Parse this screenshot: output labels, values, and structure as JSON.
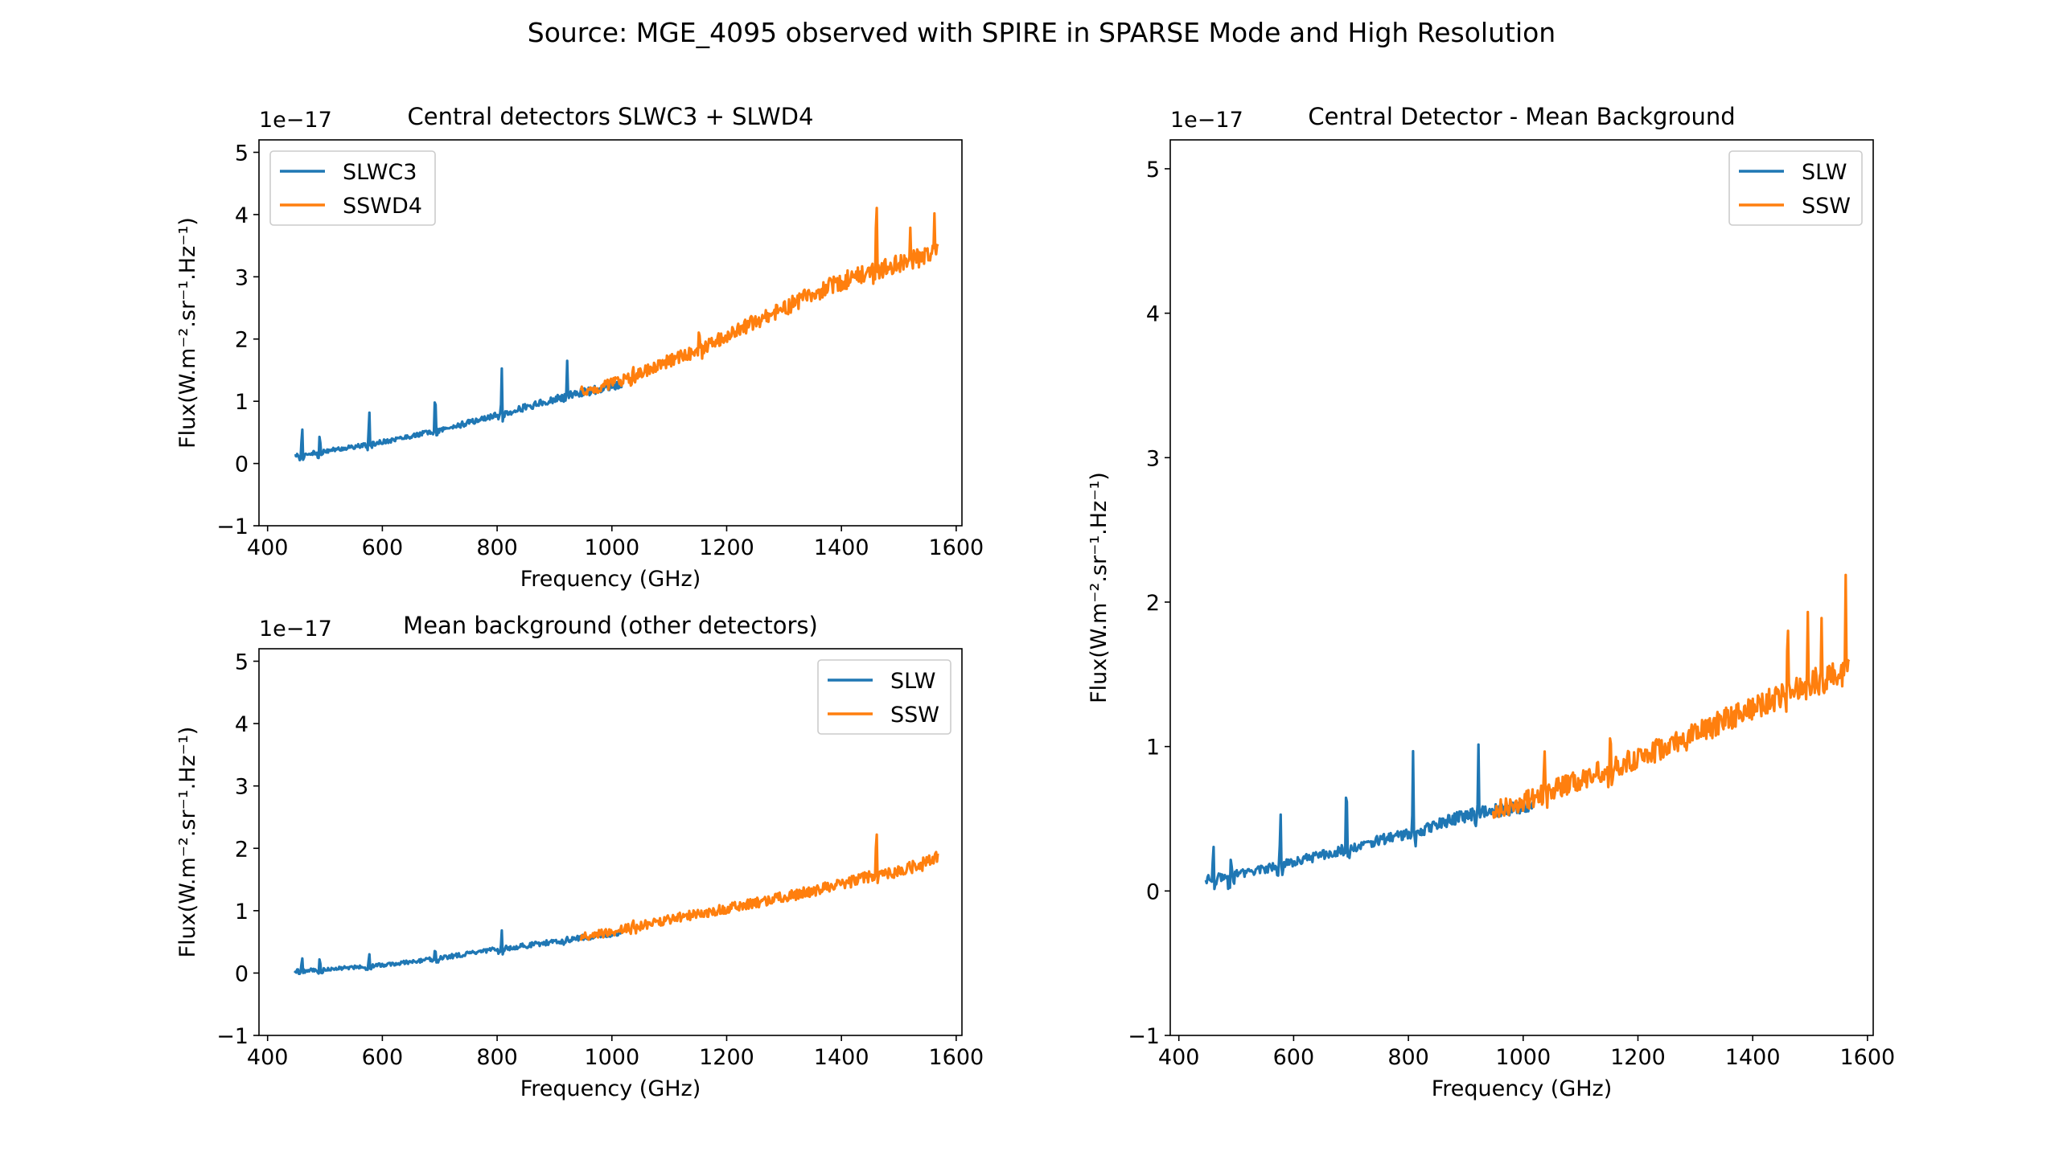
{
  "figure": {
    "suptitle": "Source: MGE_4095 observed with SPIRE in SPARSE Mode and High Resolution"
  },
  "colors": {
    "slw": "#1f77b4",
    "ssw": "#ff7f0e"
  },
  "chart_data": [
    {
      "type": "line",
      "title": "Central detectors SLWC3 + SLWD4",
      "xlabel": "Frequency (GHz)",
      "ylabel": "Flux(W.m⁻².sr⁻¹.Hz⁻¹)",
      "offset_text": "1e−17",
      "xlim": [
        385,
        1610
      ],
      "ylim": [
        -1.0,
        5.2
      ],
      "xticks": [
        400,
        600,
        800,
        1000,
        1200,
        1400,
        1600
      ],
      "yticks": [
        -1,
        0,
        1,
        2,
        3,
        4,
        5
      ],
      "legend_position": "upper-left",
      "series": [
        {
          "name": "SLWC3",
          "color": "#1f77b4",
          "x": [
            447,
            460,
            480,
            500,
            530,
            560,
            577,
            600,
            640,
            680,
            692,
            720,
            760,
            800,
            808,
            840,
            880,
            920,
            960,
            990,
            1018
          ],
          "y": [
            0.12,
            0.14,
            0.17,
            0.2,
            0.24,
            0.28,
            0.3,
            0.35,
            0.42,
            0.5,
            0.52,
            0.58,
            0.68,
            0.78,
            0.8,
            0.88,
            0.98,
            1.08,
            1.16,
            1.22,
            1.25
          ],
          "peaks": [
            {
              "x": 460,
              "y": 0.72
            },
            {
              "x": 491,
              "y": 0.55
            },
            {
              "x": 577,
              "y": 0.98
            },
            {
              "x": 692,
              "y": 1.35
            },
            {
              "x": 808,
              "y": 1.62
            },
            {
              "x": 922,
              "y": 1.68
            }
          ]
        },
        {
          "name": "SSWD4",
          "color": "#ff7f0e",
          "x": [
            946,
            1000,
            1050,
            1100,
            1150,
            1200,
            1250,
            1300,
            1350,
            1400,
            1450,
            1500,
            1540,
            1568
          ],
          "y": [
            1.15,
            1.28,
            1.45,
            1.65,
            1.82,
            2.05,
            2.28,
            2.5,
            2.72,
            2.92,
            3.08,
            3.22,
            3.32,
            3.45
          ],
          "peaks": [
            {
              "x": 1037,
              "y": 1.6
            },
            {
              "x": 1152,
              "y": 2.3
            },
            {
              "x": 1461,
              "y": 4.68
            },
            {
              "x": 1520,
              "y": 3.8
            },
            {
              "x": 1562,
              "y": 4.02
            }
          ]
        }
      ]
    },
    {
      "type": "line",
      "title": "Mean background (other detectors)",
      "xlabel": "Frequency (GHz)",
      "ylabel": "Flux(W.m⁻².sr⁻¹.Hz⁻¹)",
      "offset_text": "1e−17",
      "xlim": [
        385,
        1610
      ],
      "ylim": [
        -1.0,
        5.2
      ],
      "xticks": [
        400,
        600,
        800,
        1000,
        1200,
        1400,
        1600
      ],
      "yticks": [
        -1,
        0,
        1,
        2,
        3,
        4,
        5
      ],
      "legend_position": "upper-right",
      "series": [
        {
          "name": "SLW",
          "color": "#1f77b4",
          "x": [
            447,
            500,
            560,
            600,
            650,
            700,
            750,
            800,
            850,
            900,
            950,
            1000,
            1018
          ],
          "y": [
            0.03,
            0.06,
            0.1,
            0.13,
            0.18,
            0.24,
            0.31,
            0.38,
            0.44,
            0.5,
            0.57,
            0.63,
            0.66
          ],
          "peaks": [
            {
              "x": 460,
              "y": 0.32
            },
            {
              "x": 491,
              "y": 0.3
            },
            {
              "x": 577,
              "y": 0.36
            },
            {
              "x": 692,
              "y": 0.45
            },
            {
              "x": 808,
              "y": 0.72
            },
            {
              "x": 922,
              "y": 0.58
            }
          ]
        },
        {
          "name": "SSW",
          "color": "#ff7f0e",
          "x": [
            946,
            1000,
            1050,
            1100,
            1150,
            1200,
            1250,
            1300,
            1350,
            1400,
            1450,
            1500,
            1540,
            1568
          ],
          "y": [
            0.58,
            0.66,
            0.76,
            0.86,
            0.95,
            1.03,
            1.12,
            1.22,
            1.32,
            1.42,
            1.54,
            1.63,
            1.74,
            1.86
          ],
          "peaks": [
            {
              "x": 1037,
              "y": 0.88
            },
            {
              "x": 1461,
              "y": 2.6
            }
          ]
        }
      ]
    },
    {
      "type": "line",
      "title": "Central Detector - Mean Background",
      "xlabel": "Frequency (GHz)",
      "ylabel": "Flux(W.m⁻².sr⁻¹.Hz⁻¹)",
      "offset_text": "1e−17",
      "xlim": [
        385,
        1610
      ],
      "ylim": [
        -1.0,
        5.2
      ],
      "xticks": [
        400,
        600,
        800,
        1000,
        1200,
        1400,
        1600
      ],
      "yticks": [
        -1,
        0,
        1,
        2,
        3,
        4,
        5
      ],
      "legend_position": "upper-right",
      "series": [
        {
          "name": "SLW",
          "color": "#1f77b4",
          "x": [
            447,
            480,
            520,
            560,
            600,
            640,
            680,
            720,
            760,
            800,
            840,
            880,
            920,
            960,
            1000,
            1018
          ],
          "y": [
            0.08,
            0.1,
            0.13,
            0.16,
            0.2,
            0.24,
            0.28,
            0.32,
            0.36,
            0.4,
            0.44,
            0.5,
            0.54,
            0.56,
            0.58,
            0.6
          ],
          "peaks": [
            {
              "x": 460,
              "y": 0.4
            },
            {
              "x": 491,
              "y": 0.27
            },
            {
              "x": 577,
              "y": 0.64
            },
            {
              "x": 692,
              "y": 0.93
            },
            {
              "x": 808,
              "y": 1.04
            },
            {
              "x": 922,
              "y": 1.04
            }
          ]
        },
        {
          "name": "SSW",
          "color": "#ff7f0e",
          "x": [
            946,
            1000,
            1050,
            1100,
            1150,
            1200,
            1250,
            1300,
            1350,
            1400,
            1450,
            1500,
            1540,
            1568
          ],
          "y": [
            0.56,
            0.62,
            0.7,
            0.77,
            0.85,
            0.92,
            1.0,
            1.08,
            1.18,
            1.26,
            1.35,
            1.44,
            1.5,
            1.58
          ],
          "peaks": [
            {
              "x": 1037,
              "y": 1.07
            },
            {
              "x": 1152,
              "y": 1.2
            },
            {
              "x": 1461,
              "y": 2.05
            },
            {
              "x": 1496,
              "y": 1.95
            },
            {
              "x": 1520,
              "y": 1.9
            },
            {
              "x": 1562,
              "y": 2.19
            }
          ]
        }
      ]
    }
  ]
}
